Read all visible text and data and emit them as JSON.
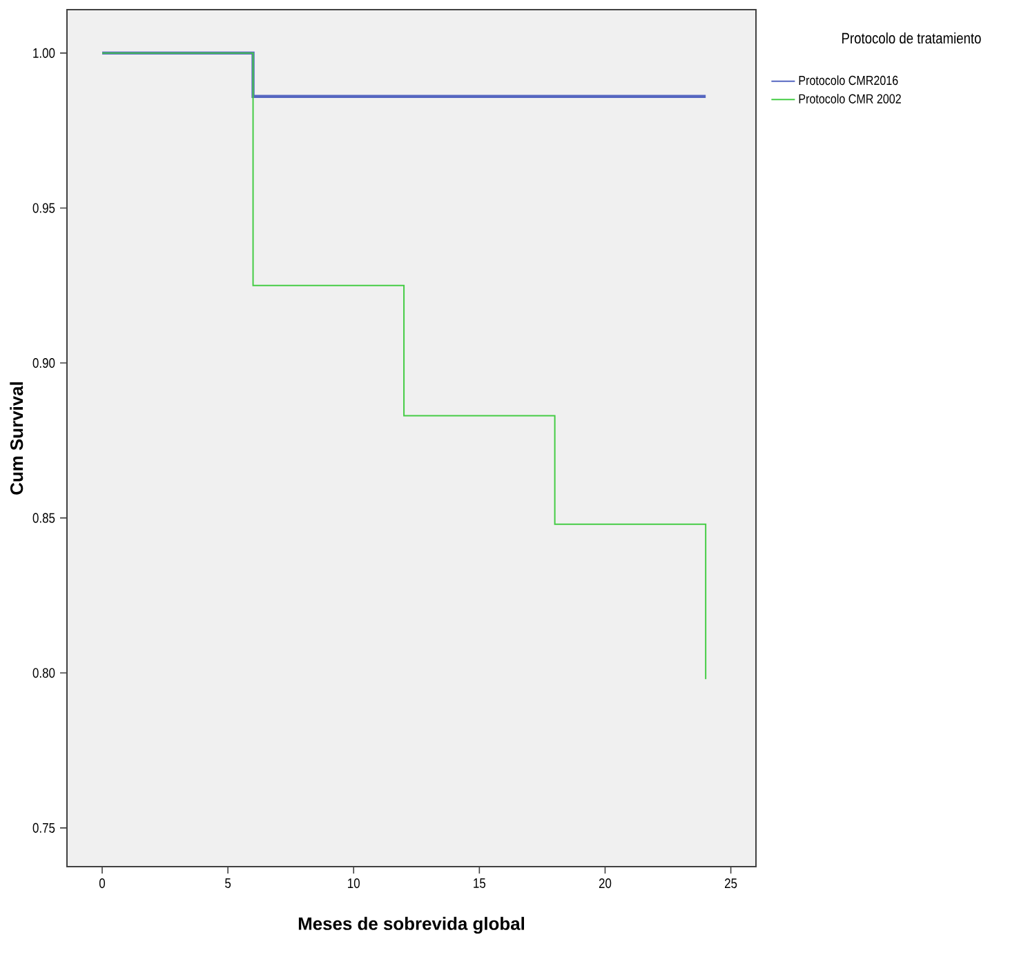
{
  "chart_data": {
    "type": "step",
    "xlabel": "Meses de sobrevida global",
    "ylabel": "Cum Survival",
    "legend_title": "Protocolo de tratamiento",
    "legend": "top right",
    "xlim": [
      -1.4,
      26.0
    ],
    "ylim": [
      0.7375,
      1.014
    ],
    "xticks": [
      0,
      5,
      10,
      15,
      20,
      25
    ],
    "yticks": [
      {
        "value": 0.75,
        "label": "0.75"
      },
      {
        "value": 0.8,
        "label": "0.80"
      },
      {
        "value": 0.85,
        "label": "0.85"
      },
      {
        "value": 0.9,
        "label": "0.90"
      },
      {
        "value": 0.95,
        "label": "0.95"
      },
      {
        "value": 1.0,
        "label": "1.00"
      }
    ],
    "series": [
      {
        "name": "Protocolo CMR2016",
        "color": "#5566c0",
        "x": [
          0,
          6,
          24
        ],
        "values": [
          1.0,
          0.986,
          0.986
        ]
      },
      {
        "name": "Protocolo CMR 2002",
        "color": "#44cc44",
        "x": [
          0,
          6,
          12,
          18,
          24
        ],
        "values": [
          1.0,
          0.925,
          0.883,
          0.848,
          0.798
        ]
      }
    ]
  }
}
